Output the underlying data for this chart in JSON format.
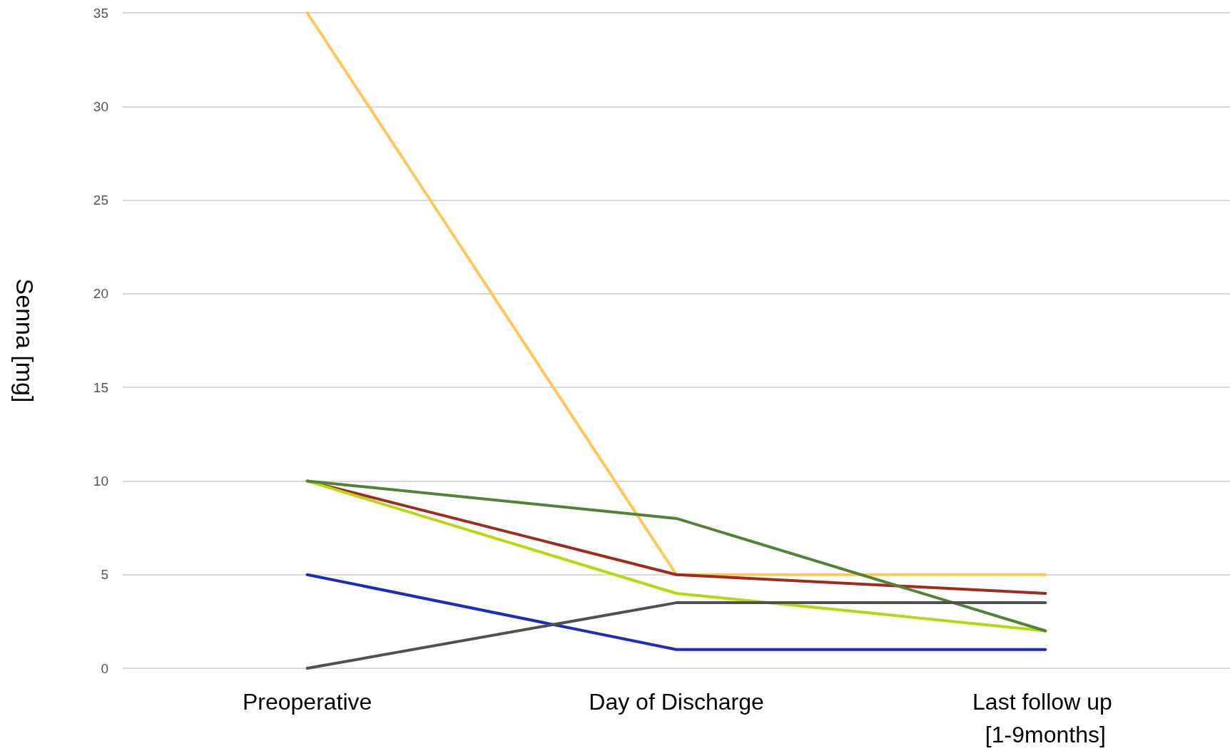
{
  "chart_data": {
    "type": "line",
    "ylabel": "Senna [mg]",
    "categories": [
      "Preoperative",
      "Day of Discharge",
      "Last follow up [1-9months]"
    ],
    "series": [
      {
        "color": "#ffc65a",
        "values": [
          35,
          5,
          5
        ]
      },
      {
        "color": "#9e2a20",
        "values": [
          10,
          5,
          4
        ]
      },
      {
        "color": "#b5d80f",
        "values": [
          10,
          4,
          2
        ]
      },
      {
        "color": "#548235",
        "values": [
          10,
          8,
          2
        ]
      },
      {
        "color": "#1f2bbf",
        "values": [
          5,
          1,
          1
        ]
      },
      {
        "color": "#505050",
        "values": [
          0,
          3.5,
          3.5
        ]
      }
    ],
    "ylim": [
      0,
      35
    ],
    "yticks": [
      0,
      5,
      10,
      15,
      20,
      25,
      30,
      35
    ],
    "grid": "y",
    "marker": "none",
    "line_style": "solid"
  }
}
